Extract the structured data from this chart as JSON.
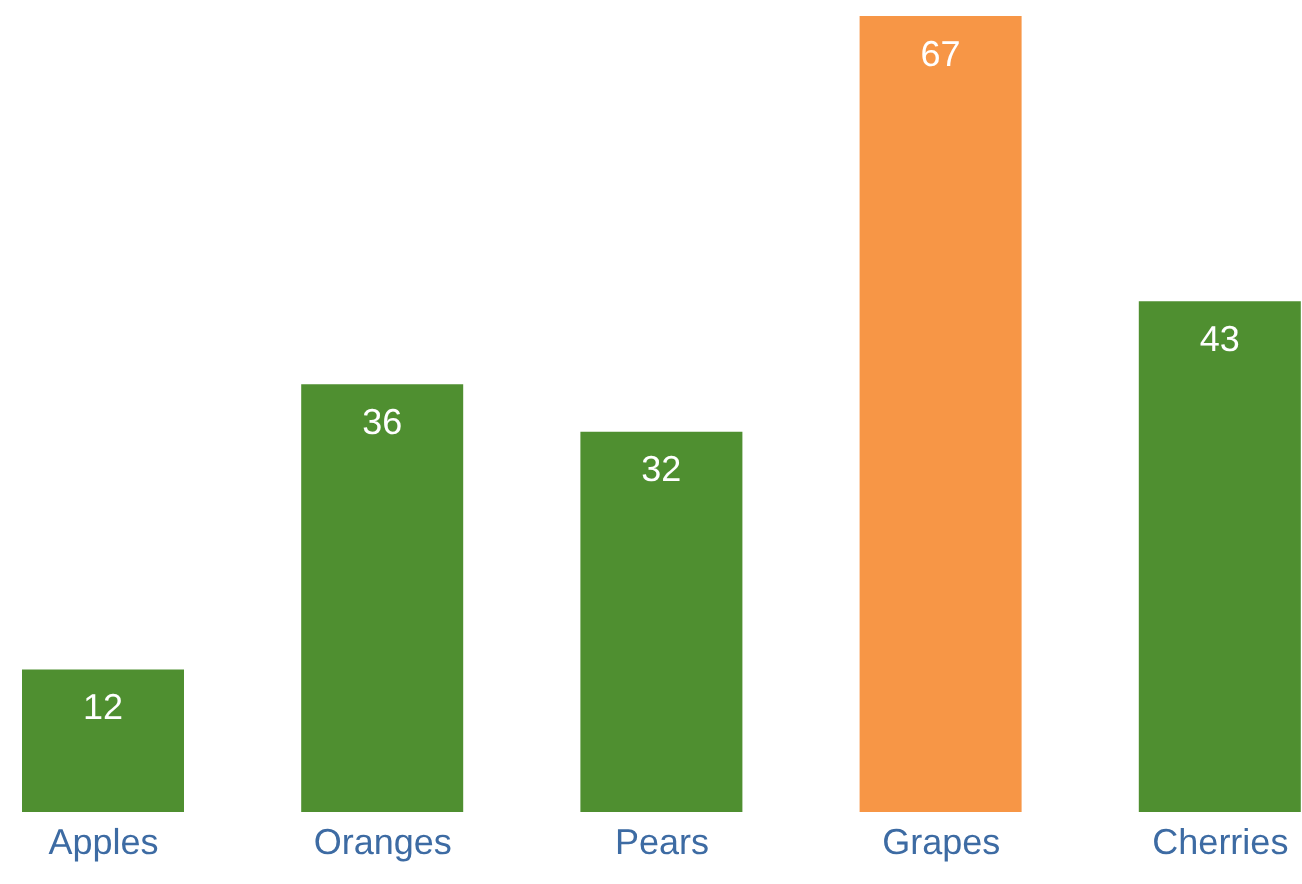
{
  "chart_data": {
    "type": "bar",
    "categories": [
      "Apples",
      "Oranges",
      "Pears",
      "Grapes",
      "Cherries"
    ],
    "values": [
      12,
      36,
      32,
      67,
      43
    ],
    "colors": [
      "#4f8f30",
      "#4f8f30",
      "#4f8f30",
      "#f79646",
      "#4f8f30"
    ],
    "data_labels": true,
    "grid": false,
    "legend": false
  }
}
